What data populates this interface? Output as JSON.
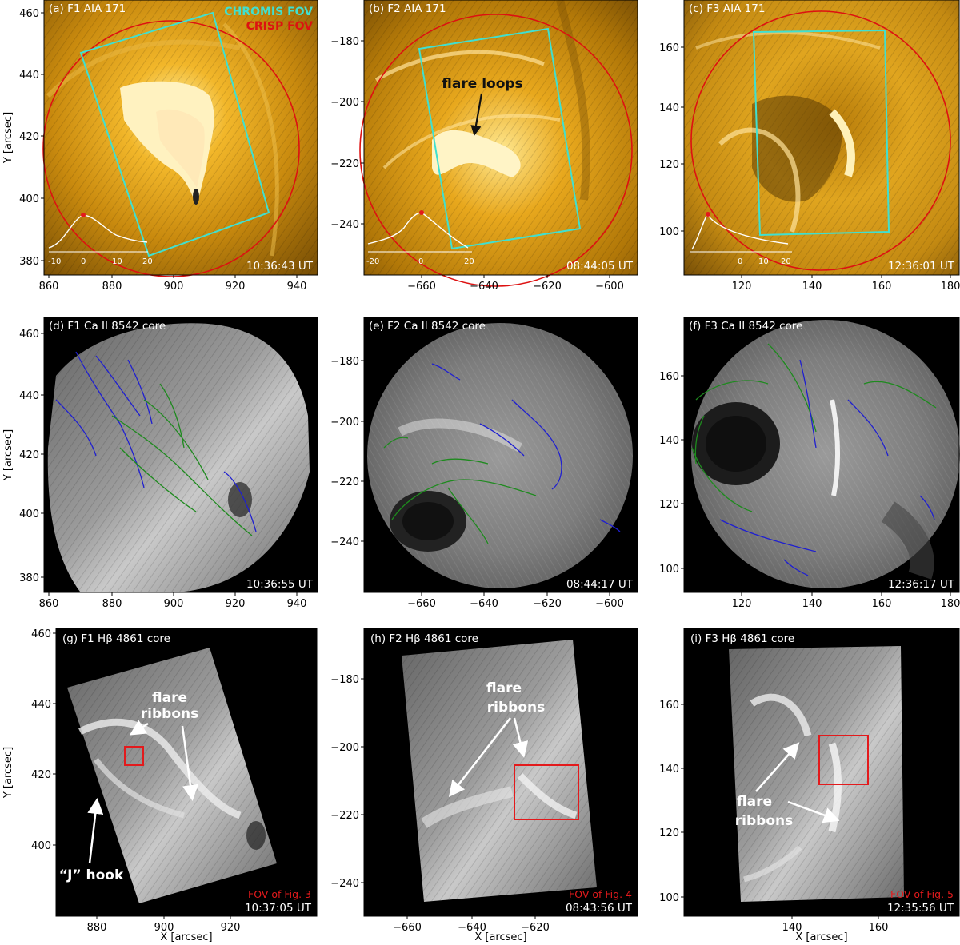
{
  "figure": {
    "legend": {
      "chromis": "CHROMIS FOV",
      "crisp": "CRISP FOV",
      "chromis_color": "#40e0d0",
      "crisp_color": "#dd1111"
    },
    "xlabel": "X [arcsec]",
    "ylabel": "Y [arcsec]",
    "annotations": {
      "flare_loops": "flare loops",
      "flare_ribbons_line1": "flare",
      "flare_ribbons_line2": "ribbons",
      "j_hook": "“J” hook"
    },
    "panels": [
      {
        "id": "a",
        "title": "(a) F1 AIA 171",
        "time": "10:36:43 UT",
        "xticks": [
          "860",
          "880",
          "900",
          "920",
          "940"
        ],
        "yticks": [
          "380",
          "400",
          "420",
          "440",
          "460"
        ],
        "lc_ticks": [
          "-10",
          "0",
          "10",
          "20"
        ]
      },
      {
        "id": "b",
        "title": "(b) F2 AIA 171",
        "time": "08:44:05 UT",
        "xticks": [
          "−660",
          "−640",
          "−620",
          "−600"
        ],
        "yticks": [
          "−240",
          "−220",
          "−200",
          "−180"
        ],
        "lc_ticks": [
          "-20",
          "0",
          "20"
        ]
      },
      {
        "id": "c",
        "title": "(c) F3 AIA 171",
        "time": "12:36:01 UT",
        "xticks": [
          "120",
          "140",
          "160",
          "180"
        ],
        "yticks": [
          "100",
          "120",
          "140",
          "160"
        ],
        "lc_ticks": [
          "0",
          "10",
          "20"
        ]
      },
      {
        "id": "d",
        "title": "(d) F1 Ca II 8542 core",
        "time": "10:36:55 UT",
        "xticks": [
          "860",
          "880",
          "900",
          "920",
          "940"
        ],
        "yticks": [
          "380",
          "400",
          "420",
          "440",
          "460"
        ]
      },
      {
        "id": "e",
        "title": "(e) F2 Ca II 8542 core",
        "time": "08:44:17 UT",
        "xticks": [
          "−660",
          "−640",
          "−620",
          "−600"
        ],
        "yticks": [
          "−240",
          "−220",
          "−200",
          "−180"
        ]
      },
      {
        "id": "f",
        "title": "(f) F3 Ca II 8542 core",
        "time": "12:36:17 UT",
        "xticks": [
          "120",
          "140",
          "160",
          "180"
        ],
        "yticks": [
          "100",
          "120",
          "140",
          "160"
        ]
      },
      {
        "id": "g",
        "title": "(g) F1 Hβ 4861 core",
        "time": "10:37:05 UT",
        "fov": "FOV of Fig. 3",
        "xticks": [
          "880",
          "900",
          "920"
        ],
        "yticks": [
          "400",
          "420",
          "440",
          "460"
        ]
      },
      {
        "id": "h",
        "title": "(h) F2 Hβ 4861 core",
        "time": "08:43:56 UT",
        "fov": "FOV of Fig. 4",
        "xticks": [
          "−660",
          "−640",
          "−620"
        ],
        "yticks": [
          "−240",
          "−220",
          "−200",
          "−180"
        ]
      },
      {
        "id": "i",
        "title": "(i) F3 Hβ 4861 core",
        "time": "12:35:56 UT",
        "fov": "FOV of Fig. 5",
        "xticks": [
          "140",
          "160"
        ],
        "yticks": [
          "100",
          "120",
          "140",
          "160"
        ]
      }
    ]
  }
}
